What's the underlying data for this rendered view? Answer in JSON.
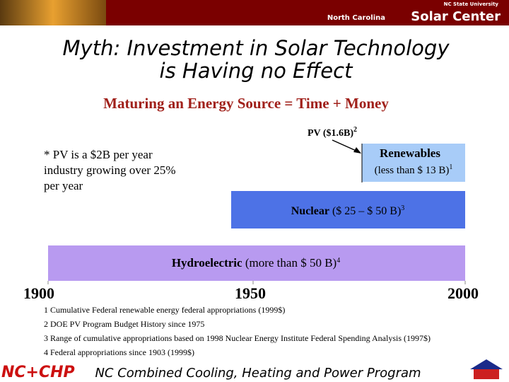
{
  "header": {
    "university": "NC State University",
    "center": "North Carolina",
    "center_bold": "Solar Center"
  },
  "title": [
    "Myth: Investment in Solar Technology",
    "is Having no Effect"
  ],
  "subtitle": "Maturing an Energy Source = Time + Money",
  "pv_label": {
    "text": "PV ($1.6B)",
    "sup": "2"
  },
  "note": [
    "* PV is a $2B per year",
    "industry growing over 25%",
    "per year"
  ],
  "bars": [
    {
      "bold": "Renewables",
      "rest": "(less than $ 13 B)",
      "sup": "1"
    },
    {
      "bold": "Nuclear",
      "rest": " ($ 25 – $ 50 B)",
      "sup": "3"
    },
    {
      "bold": "Hydroelectric",
      "rest": " (more than $ 50 B)",
      "sup": "4"
    }
  ],
  "years": [
    "1900",
    "1950",
    "2000"
  ],
  "footnotes": [
    "1 Cumulative Federal renewable energy federal appropriations (1999$)",
    "2 DOE PV Program Budget History since 1975",
    "3 Range of cumulative appropriations based on 1998 Nuclear Energy Institute Federal Spending Analysis (1997$)",
    "4 Federal appropriations since 1903 (1999$)"
  ],
  "footer": {
    "logo": "NC+CHP",
    "text": "NC Combined Cooling, Heating and Power Program"
  }
}
